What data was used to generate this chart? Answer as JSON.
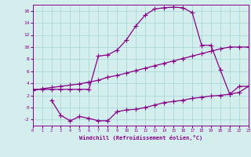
{
  "line1_x": [
    0,
    1,
    2,
    3,
    4,
    5,
    6,
    7,
    8,
    9,
    10,
    11,
    12,
    13,
    14,
    15,
    16,
    17,
    18,
    19,
    20,
    21,
    22,
    23
  ],
  "line1_y": [
    3.0,
    3.0,
    3.0,
    3.0,
    3.0,
    3.0,
    3.0,
    8.5,
    8.7,
    9.5,
    11.2,
    13.5,
    15.3,
    16.3,
    16.5,
    16.6,
    16.5,
    15.7,
    10.3,
    10.3,
    6.2,
    2.2,
    3.5,
    3.5
  ],
  "line2_x": [
    0,
    1,
    2,
    3,
    4,
    5,
    6,
    7,
    8,
    9,
    10,
    11,
    12,
    13,
    14,
    15,
    16,
    17,
    18,
    19,
    20,
    21,
    22,
    23
  ],
  "line2_y": [
    2.8,
    3.1,
    3.3,
    3.5,
    3.7,
    3.9,
    4.2,
    4.5,
    5.0,
    5.3,
    5.7,
    6.1,
    6.5,
    6.9,
    7.3,
    7.7,
    8.1,
    8.5,
    8.9,
    9.3,
    9.7,
    10.0,
    10.0,
    10.0
  ],
  "line3_x": [
    2,
    3,
    4,
    5,
    6,
    7,
    8,
    9,
    10,
    11,
    12,
    13,
    14,
    15,
    16,
    17,
    18,
    19,
    20,
    21,
    22,
    23
  ],
  "line3_y": [
    1.2,
    -1.3,
    -2.2,
    -1.5,
    -1.8,
    -2.2,
    -2.2,
    -0.7,
    -0.4,
    -0.3,
    0.0,
    0.4,
    0.8,
    1.0,
    1.2,
    1.5,
    1.7,
    1.9,
    2.0,
    2.2,
    2.5,
    3.5
  ],
  "color": "#880088",
  "bg_color": "#d4eeee",
  "grid_color": "#a8d8d8",
  "xlabel": "Windchill (Refroidissement éolien,°C)",
  "ylim": [
    -3,
    17
  ],
  "xlim": [
    0,
    23
  ],
  "yticks": [
    -2,
    0,
    2,
    4,
    6,
    8,
    10,
    12,
    14,
    16
  ],
  "xticks": [
    0,
    1,
    2,
    3,
    4,
    5,
    6,
    7,
    8,
    9,
    10,
    11,
    12,
    13,
    14,
    15,
    16,
    17,
    18,
    19,
    20,
    21,
    22,
    23
  ],
  "figw": 3.2,
  "figh": 2.0,
  "dpi": 100
}
